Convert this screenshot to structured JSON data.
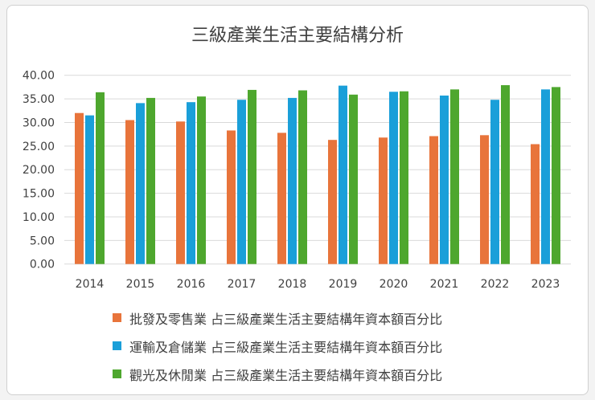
{
  "chart_data": {
    "type": "bar",
    "title": "三級產業生活主要結構分析",
    "categories": [
      "2014",
      "2015",
      "2016",
      "2017",
      "2018",
      "2019",
      "2020",
      "2021",
      "2022",
      "2023"
    ],
    "series": [
      {
        "name": "批發及零售業 占三級產業生活主要結構年資本額百分比",
        "color": "#e8743b",
        "values": [
          32.0,
          30.5,
          30.2,
          28.3,
          27.8,
          26.3,
          26.8,
          27.1,
          27.3,
          25.4
        ]
      },
      {
        "name": "運輸及倉儲業 占三級產業生活主要結構年資本額百分比",
        "color": "#1a9fd9",
        "values": [
          31.5,
          34.1,
          34.3,
          34.8,
          35.2,
          37.8,
          36.5,
          35.7,
          34.8,
          37.0
        ]
      },
      {
        "name": "觀光及休閒業 占三級產業生活主要結構年資本額百分比",
        "color": "#4ea72e",
        "values": [
          36.4,
          35.2,
          35.5,
          36.9,
          36.8,
          35.9,
          36.6,
          37.0,
          37.9,
          37.5
        ]
      }
    ],
    "ylim": [
      0,
      40
    ],
    "yticks": [
      "0.00",
      "5.00",
      "10.00",
      "15.00",
      "20.00",
      "25.00",
      "30.00",
      "35.00",
      "40.00"
    ],
    "grid": true,
    "legend": "bottom"
  }
}
